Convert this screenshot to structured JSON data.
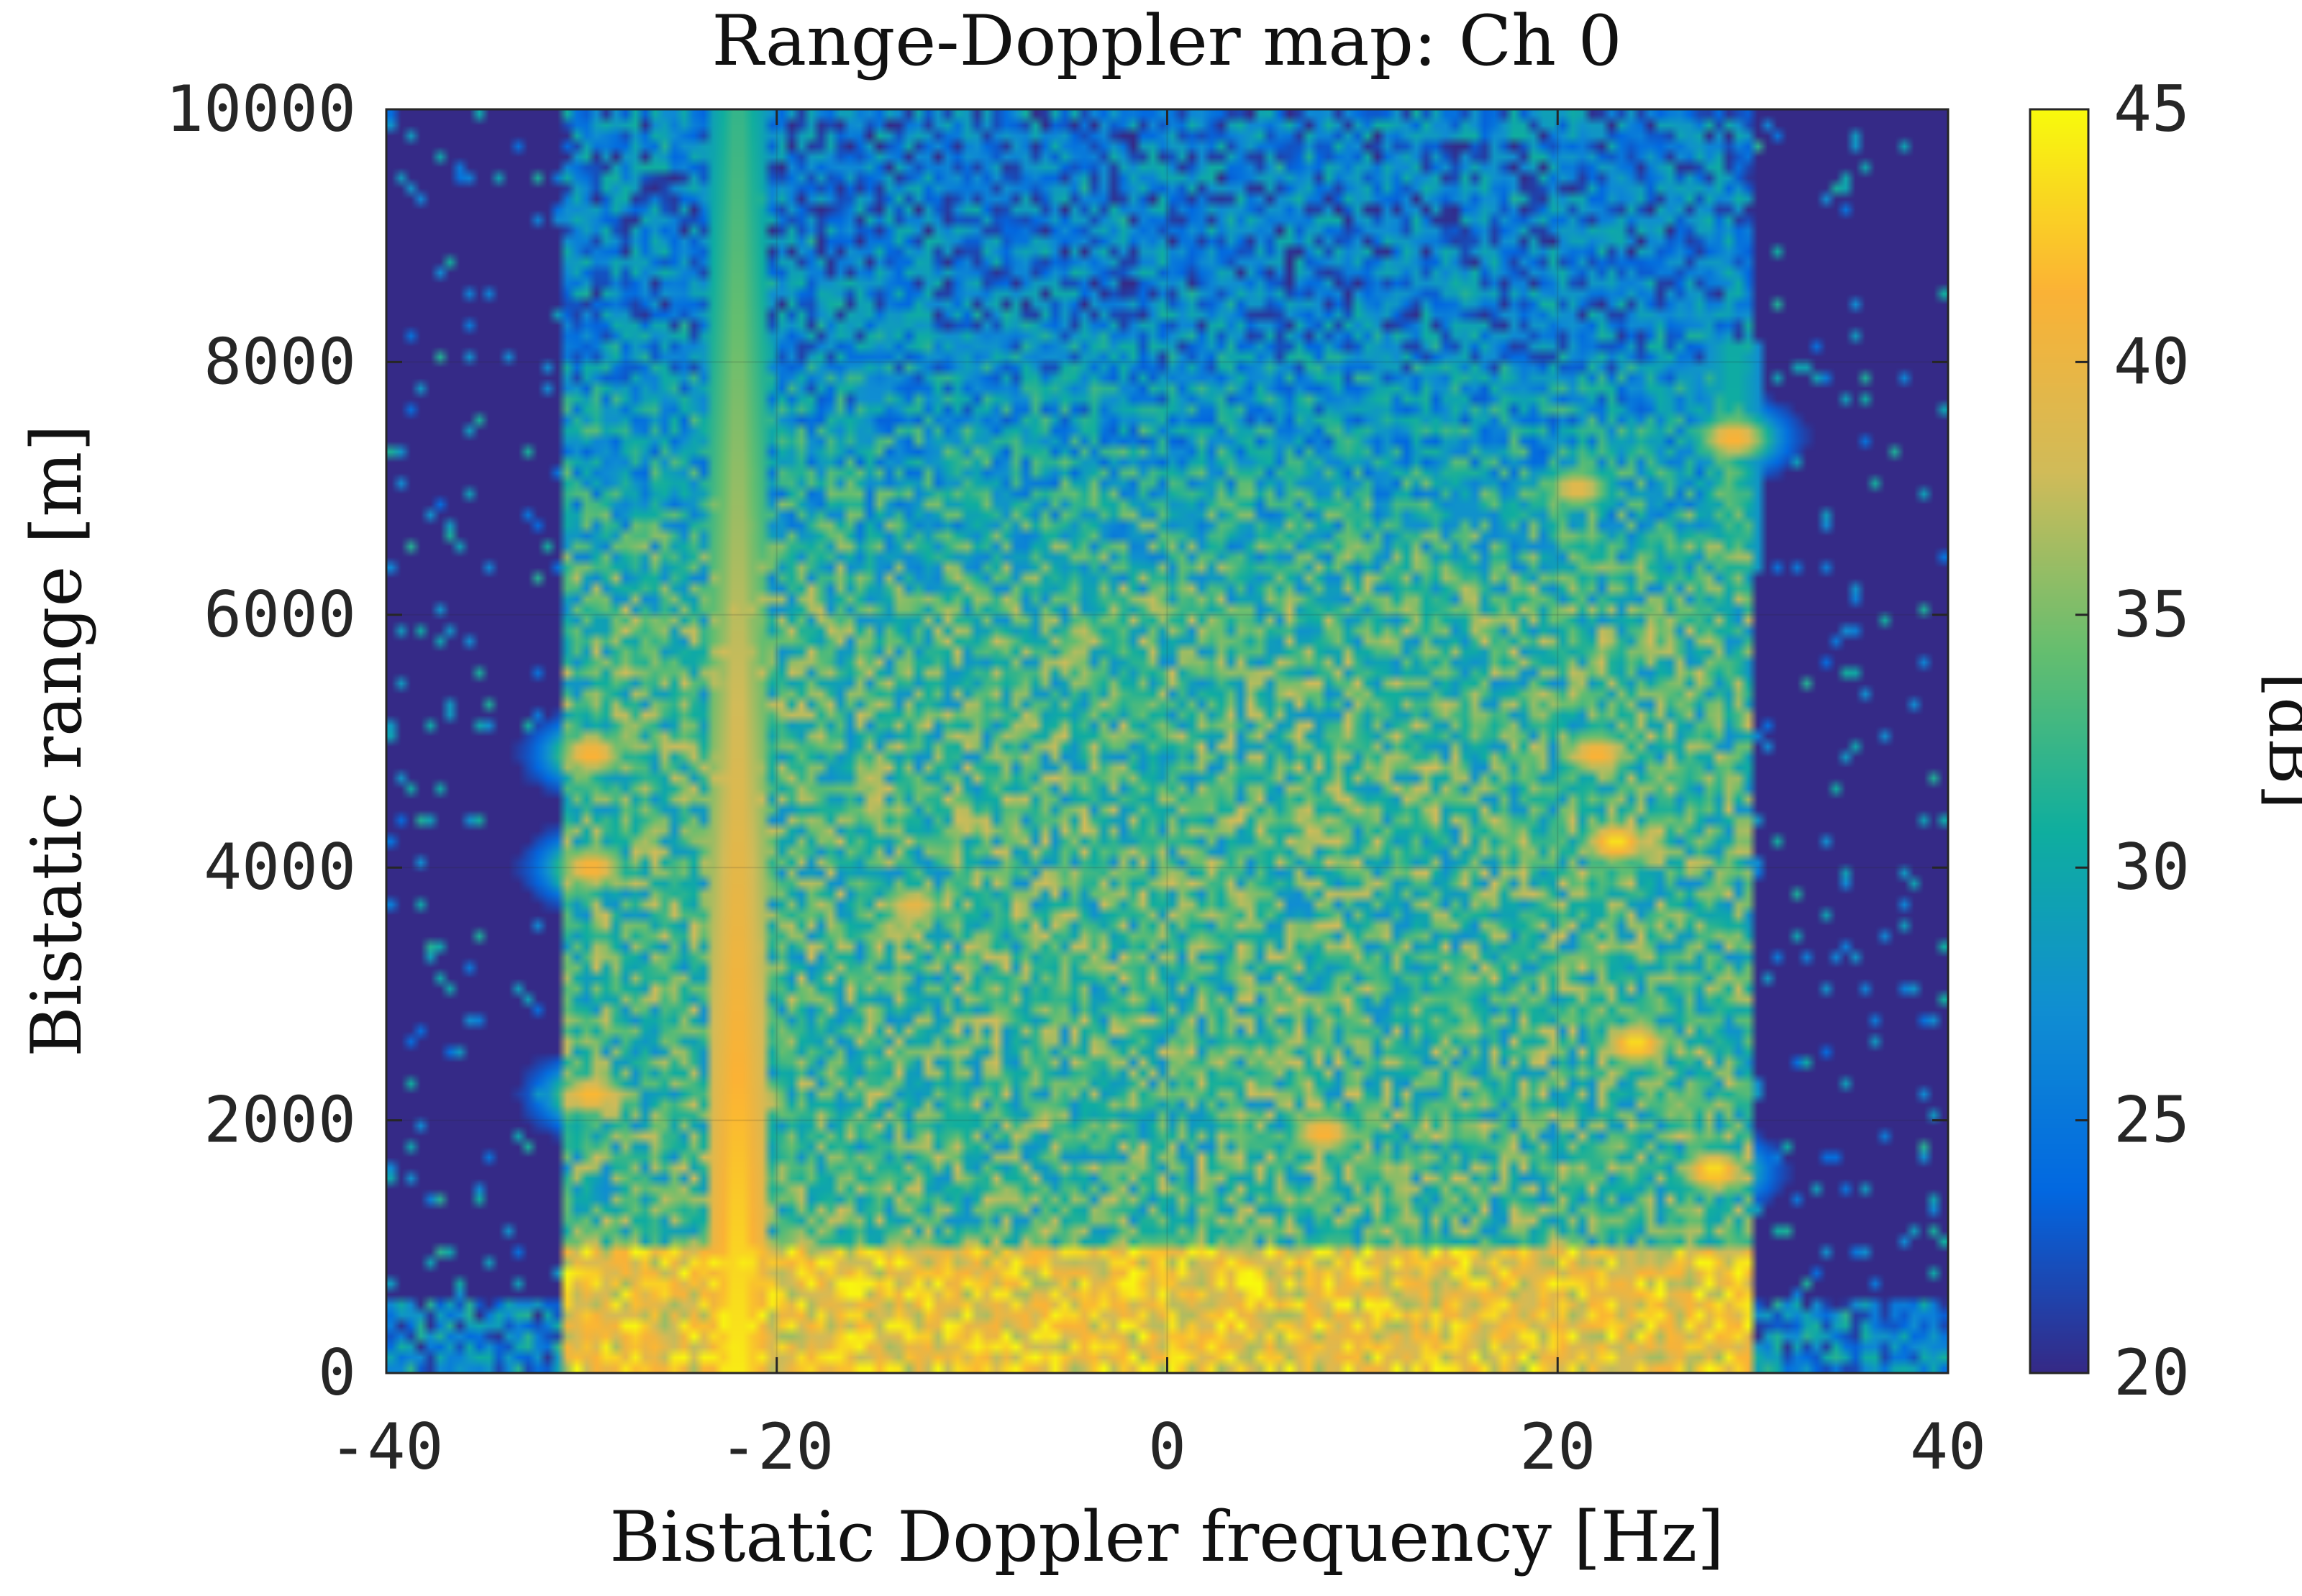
{
  "chart_data": {
    "type": "heatmap",
    "title": "Range-Doppler map: Ch 0",
    "xlabel": "Bistatic Doppler frequency [Hz]",
    "ylabel": "Bistatic range [m]",
    "xlim": [
      -40,
      40
    ],
    "ylim": [
      0,
      10000
    ],
    "xticks": [
      -40,
      -20,
      0,
      20,
      40
    ],
    "xtick_labels": [
      "-40",
      "-20",
      "0",
      "20",
      "40"
    ],
    "yticks": [
      0,
      2000,
      4000,
      6000,
      8000,
      10000
    ],
    "ytick_labels": [
      "0",
      "2000",
      "4000",
      "6000",
      "8000",
      "10000"
    ],
    "colorbar": {
      "label": "[dB]",
      "range": [
        20,
        45
      ],
      "ticks": [
        20,
        25,
        30,
        35,
        40,
        45
      ],
      "tick_labels": [
        "20",
        "25",
        "30",
        "35",
        "40",
        "45"
      ],
      "colormap": "parula",
      "colors": [
        "#352a87",
        "#0268e1",
        "#108ed2",
        "#0fae9f",
        "#65be6f",
        "#d1bb59",
        "#fbb236",
        "#f8fa0d"
      ]
    },
    "features": [
      {
        "type": "vertical-line",
        "doppler_hz": -22,
        "range_m": [
          0,
          10000
        ],
        "level_db_bottom": 45,
        "level_db_top": 33
      },
      {
        "type": "band",
        "doppler_hz": [
          -31,
          30
        ],
        "range_m": [
          0,
          6000
        ],
        "level_db": 31
      },
      {
        "type": "blob",
        "doppler_hz": -29.5,
        "range_m": 4900,
        "level_db": 42
      },
      {
        "type": "blob",
        "doppler_hz": -29.5,
        "range_m": 4000,
        "level_db": 42
      },
      {
        "type": "blob",
        "doppler_hz": -29.5,
        "range_m": 2200,
        "level_db": 42
      },
      {
        "type": "blob",
        "doppler_hz": -13,
        "range_m": 3700,
        "level_db": 40
      },
      {
        "type": "blob",
        "doppler_hz": 23,
        "range_m": 4200,
        "level_db": 44
      },
      {
        "type": "blob",
        "doppler_hz": 22,
        "range_m": 4900,
        "level_db": 42
      },
      {
        "type": "blob",
        "doppler_hz": 24,
        "range_m": 2600,
        "level_db": 44
      },
      {
        "type": "blob",
        "doppler_hz": 28,
        "range_m": 1600,
        "level_db": 44
      },
      {
        "type": "blob",
        "doppler_hz": 8,
        "range_m": 1900,
        "level_db": 42
      },
      {
        "type": "blob",
        "doppler_hz": 21,
        "range_m": 7000,
        "level_db": 40
      },
      {
        "type": "blob",
        "doppler_hz": 29,
        "range_m": 7400,
        "level_db": 42
      },
      {
        "type": "blob",
        "doppler_hz": -2,
        "range_m": 700,
        "level_db": 45
      },
      {
        "type": "vertical-line",
        "doppler_hz": 29,
        "range_m": [
          6300,
          8200
        ],
        "level_db_bottom": 32,
        "level_db_top": 31
      }
    ]
  }
}
